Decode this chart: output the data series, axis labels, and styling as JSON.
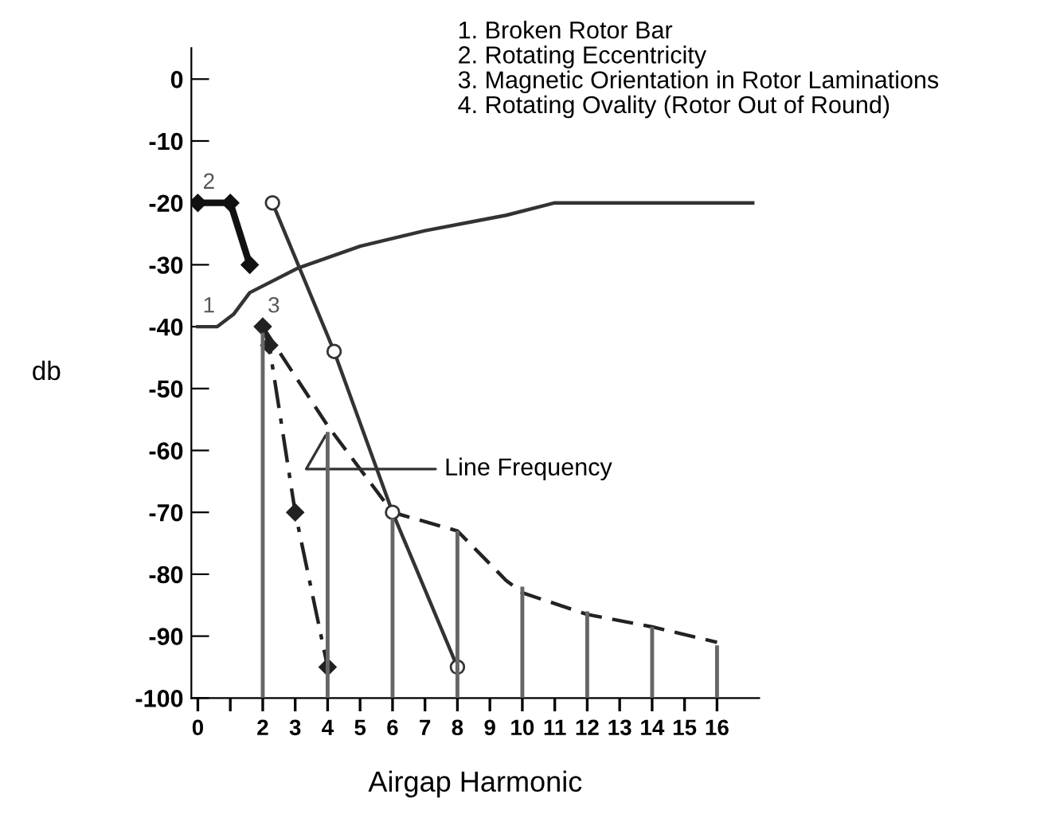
{
  "chart_data": {
    "type": "line",
    "xlabel": "Airgap Harmonic",
    "ylabel": "db",
    "xlim": [
      -0.2,
      17.3
    ],
    "ylim": [
      -100,
      5
    ],
    "xticks": [
      0,
      {
        "value": 1,
        "label": null
      },
      2,
      3,
      4,
      5,
      6,
      7,
      8,
      9,
      10,
      11,
      12,
      13,
      14,
      15,
      16
    ],
    "yticks": [
      0,
      -10,
      -20,
      -30,
      -40,
      -50,
      -60,
      -70,
      -80,
      -90,
      -100
    ],
    "grid": false,
    "legend": false,
    "series": [
      {
        "color": "#333333",
        "line_style": "solid",
        "marker": "none",
        "x": [
          0,
          0.6,
          1.1,
          1.6,
          3.1,
          5,
          7,
          8.5,
          9.5,
          11,
          17.1
        ],
        "values": [
          -40,
          -40,
          -38,
          -34.5,
          -30.5,
          -27,
          -24.5,
          -23,
          -22,
          -20,
          -20
        ]
      },
      {
        "color": "#111111",
        "line_style": "solid",
        "marker": "diamond",
        "x": [
          0,
          1,
          1.6
        ],
        "values": [
          -20,
          -20,
          -30
        ]
      },
      {
        "color": "#222222",
        "line_style": "dashdot",
        "marker": "diamond",
        "x": [
          2,
          2.2,
          3,
          4
        ],
        "values": [
          -40,
          -43,
          -70,
          -95
        ]
      },
      {
        "color": "#222222",
        "line_style": "dashed",
        "marker": "none",
        "x": [
          2,
          4,
          6,
          8,
          9.5,
          10,
          12,
          14,
          16
        ],
        "values": [
          -40,
          -56,
          -70,
          -73,
          -81,
          -83,
          -86.5,
          -88.5,
          -91
        ]
      },
      {
        "color": "#333333",
        "line_style": "solid",
        "marker": "circle",
        "x": [
          2.3,
          4.2,
          6,
          8
        ],
        "values": [
          -20,
          -44,
          -70,
          -95
        ]
      },
      {
        "type": "bar",
        "color": "#666666",
        "x": [
          2,
          4,
          6,
          8,
          10,
          12,
          14,
          16
        ],
        "base": [
          -100,
          -100,
          -100,
          -100,
          -100,
          -100,
          -100,
          -100
        ],
        "values": [
          59,
          43,
          29,
          27,
          18,
          14,
          11.5,
          8.5
        ]
      }
    ],
    "annotations": [
      "1. Broken Rotor Bar",
      "2. Rotating Eccentricity",
      "3. Magnetic Orientation in Rotor Laminations",
      "4. Rotating Ovality (Rotor Out of Round)",
      {
        "text": "1",
        "x": 0,
        "y": -40
      },
      {
        "text": "2",
        "x": 0,
        "y": -20
      },
      {
        "text": "3",
        "x": 2,
        "y": -40
      },
      {
        "text": "Line Frequency",
        "x": 4,
        "y": -57
      }
    ]
  }
}
